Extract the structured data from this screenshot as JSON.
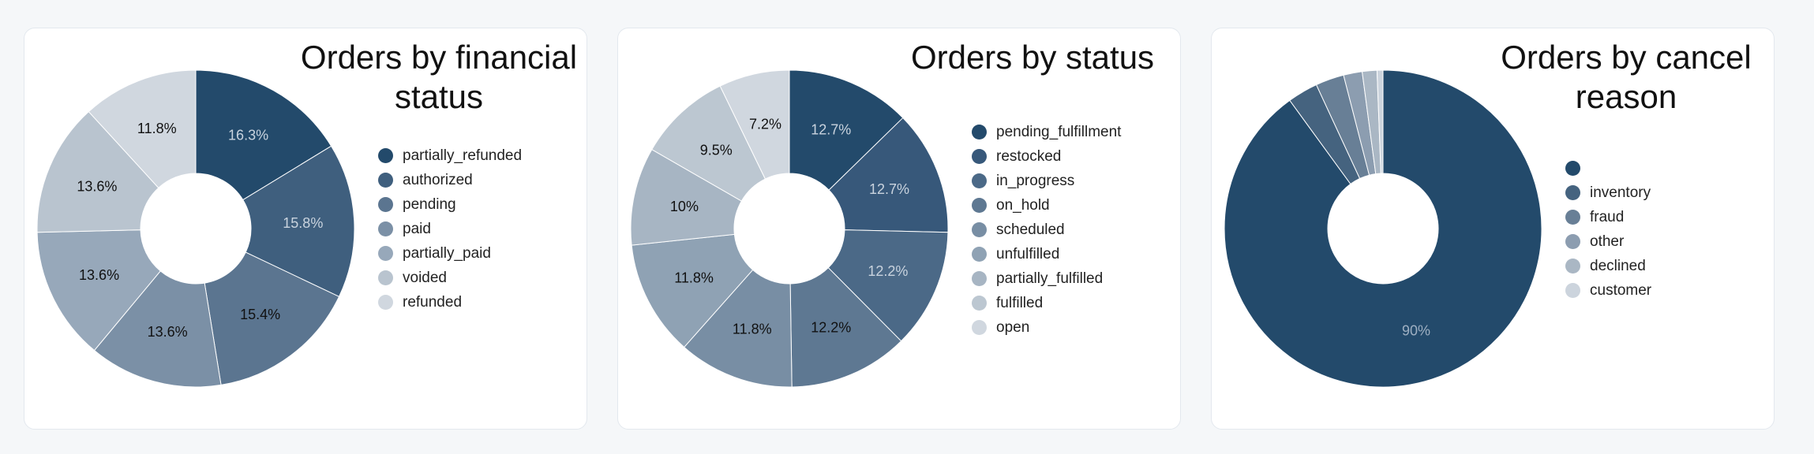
{
  "charts": [
    {
      "title": "Orders by financial status",
      "chart_data": {
        "type": "pie",
        "donut": true,
        "title": "Orders by financial status",
        "categories": [
          "partially_refunded",
          "authorized",
          "pending",
          "paid",
          "partially_paid",
          "voided",
          "refunded"
        ],
        "values": [
          16.3,
          15.8,
          15.4,
          13.6,
          13.6,
          13.6,
          11.8
        ],
        "value_labels": [
          "16.3%",
          "15.8%",
          "15.4%",
          "13.6%",
          "13.6%",
          "13.6%",
          "11.8%"
        ],
        "colors": [
          "#234a6b",
          "#3f5f7e",
          "#5b7590",
          "#7b90a6",
          "#97a8ba",
          "#b9c4cf",
          "#d0d7df"
        ],
        "label_colors": [
          "#c9d3de",
          "#c9d3de",
          "#111111",
          "#111111",
          "#111111",
          "#111111",
          "#111111"
        ],
        "legend_position": "right"
      }
    },
    {
      "title": "Orders by status",
      "chart_data": {
        "type": "pie",
        "donut": true,
        "title": "Orders by status",
        "categories": [
          "pending_fulfillment",
          "restocked",
          "in_progress",
          "on_hold",
          "scheduled",
          "unfulfilled",
          "partially_fulfilled",
          "fulfilled",
          "open"
        ],
        "values": [
          12.7,
          12.7,
          12.2,
          12.2,
          11.8,
          11.8,
          10,
          9.5,
          7.2
        ],
        "value_labels": [
          "12.7%",
          "12.7%",
          "12.2%",
          "12.2%",
          "11.8%",
          "11.8%",
          "10%",
          "9.5%",
          "7.2%"
        ],
        "colors": [
          "#234a6b",
          "#37587a",
          "#4b6987",
          "#5e7892",
          "#788ea4",
          "#8fa2b4",
          "#a7b5c3",
          "#bcc7d1",
          "#d0d7df"
        ],
        "label_colors": [
          "#c9d3de",
          "#c9d3de",
          "#c9d3de",
          "#111111",
          "#111111",
          "#111111",
          "#111111",
          "#111111",
          "#111111"
        ],
        "legend_position": "right"
      }
    },
    {
      "title": "Orders by cancel reason",
      "chart_data": {
        "type": "pie",
        "donut": true,
        "title": "Orders by cancel reason",
        "categories": [
          "",
          "inventory",
          "fraud",
          "other",
          "declined",
          "customer"
        ],
        "values": [
          90,
          3.1,
          2.9,
          1.9,
          1.5,
          0.6
        ],
        "value_labels": [
          "90%",
          "",
          "",
          "",
          "",
          ""
        ],
        "colors": [
          "#234a6b",
          "#45637f",
          "#687f96",
          "#8c9db0",
          "#aab7c4",
          "#ccd4dd"
        ],
        "label_colors": [
          "#9fb0c2",
          "#111111",
          "#111111",
          "#111111",
          "#111111",
          "#111111"
        ],
        "legend_position": "right"
      }
    }
  ]
}
